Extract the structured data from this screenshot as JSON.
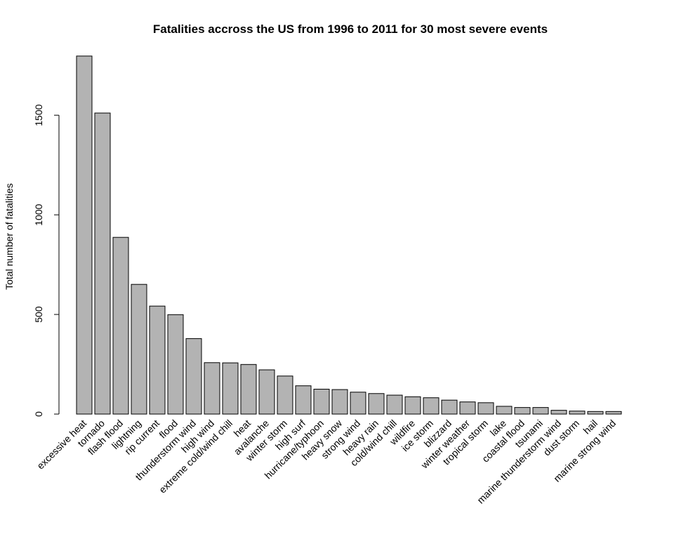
{
  "chart_data": {
    "type": "bar",
    "title": "Fatalities accross the US from 1996 to 2011 for 30 most severe events",
    "xlabel": "",
    "ylabel": "Total number of fatalities",
    "ylim": [
      0,
      1800
    ],
    "yticks": [
      0,
      500,
      1000,
      1500
    ],
    "grid": false,
    "bar_color": "#b3b3b3",
    "categories": [
      "excessive heat",
      "tornado",
      "flash flood",
      "lightning",
      "rip current",
      "flood",
      "thunderstorm wind",
      "high wind",
      "extreme cold/wind chill",
      "heat",
      "avalanche",
      "winter storm",
      "high surf",
      "hurricane/typhoon",
      "heavy snow",
      "strong wind",
      "heavy rain",
      "cold/wind chill",
      "wildfire",
      "ice storm",
      "blizzard",
      "winter weather",
      "tropical storm",
      "lake",
      "coastal flood",
      "tsunami",
      "marine thunderstorm wind",
      "dust storm",
      "hail",
      "marine strong wind"
    ],
    "values": [
      1797,
      1511,
      887,
      651,
      542,
      499,
      379,
      258,
      257,
      249,
      222,
      191,
      142,
      125,
      123,
      110,
      103,
      95,
      87,
      82,
      70,
      61,
      57,
      39,
      33,
      33,
      19,
      15,
      13,
      13
    ]
  }
}
